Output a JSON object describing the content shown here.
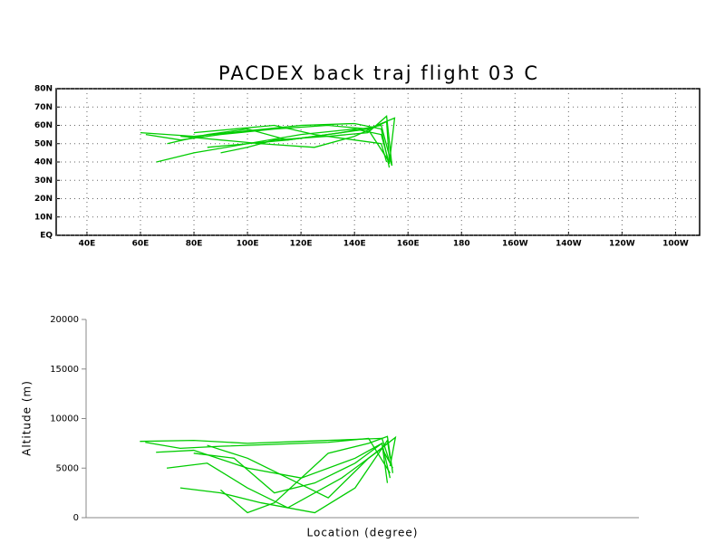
{
  "chart_data": [
    {
      "type": "map",
      "title": "PACDEX back traj flight 03 C",
      "xlim": [
        28.5,
        269
      ],
      "ylim": [
        0,
        80
      ],
      "xticks": [
        {
          "value": 40,
          "label": "40E"
        },
        {
          "value": 60,
          "label": "60E"
        },
        {
          "value": 80,
          "label": "80E"
        },
        {
          "value": 100,
          "label": "100E"
        },
        {
          "value": 120,
          "label": "120E"
        },
        {
          "value": 140,
          "label": "140E"
        },
        {
          "value": 160,
          "label": "160E"
        },
        180,
        {
          "value": 200,
          "label": "160W"
        },
        {
          "value": 220,
          "label": "140W"
        },
        {
          "value": 240,
          "label": "120W"
        },
        {
          "value": 260,
          "label": "100W"
        }
      ],
      "yticks": [
        {
          "value": 0,
          "label": "EQ"
        },
        {
          "value": 10,
          "label": "10N"
        },
        {
          "value": 20,
          "label": "20N"
        },
        {
          "value": 30,
          "label": "30N"
        },
        {
          "value": 40,
          "label": "40N"
        },
        {
          "value": 50,
          "label": "50N"
        },
        {
          "value": 60,
          "label": "60N"
        },
        {
          "value": 70,
          "label": "70N"
        },
        {
          "value": 80,
          "label": "80N"
        }
      ],
      "grid": true,
      "series": [
        {
          "color": "#00cc00",
          "x": [
            62,
            75,
            90,
            110,
            130,
            145,
            153
          ],
          "values": [
            55,
            52,
            55,
            58,
            60,
            58,
            40
          ]
        },
        {
          "color": "#00cc00",
          "x": [
            66,
            80,
            100,
            120,
            140,
            150,
            153
          ],
          "values": [
            40,
            45,
            50,
            55,
            58,
            55,
            39
          ]
        },
        {
          "color": "#00cc00",
          "x": [
            70,
            85,
            100,
            115,
            135,
            150,
            154
          ],
          "values": [
            50,
            55,
            58,
            52,
            56,
            60,
            38
          ]
        },
        {
          "color": "#00cc00",
          "x": [
            75,
            90,
            105,
            125,
            140,
            152,
            153
          ],
          "values": [
            54,
            52,
            50,
            48,
            54,
            62,
            41
          ]
        },
        {
          "color": "#00cc00",
          "x": [
            80,
            95,
            110,
            125,
            140,
            150,
            152
          ],
          "values": [
            56,
            58,
            60,
            55,
            52,
            50,
            40
          ]
        },
        {
          "color": "#00cc00",
          "x": [
            85,
            100,
            115,
            130,
            145,
            155,
            153
          ],
          "values": [
            48,
            50,
            52,
            55,
            58,
            64,
            39
          ]
        },
        {
          "color": "#00cc00",
          "x": [
            60,
            80,
            100,
            120,
            140,
            150,
            153
          ],
          "values": [
            56,
            54,
            57,
            60,
            61,
            58,
            37
          ]
        },
        {
          "color": "#00cc00",
          "x": [
            90,
            100,
            110,
            130,
            145,
            152,
            154
          ],
          "values": [
            45,
            48,
            52,
            54,
            56,
            65,
            38
          ]
        }
      ]
    },
    {
      "type": "line",
      "xlabel": "Location (degree)",
      "ylabel": "Altitude (m)",
      "xlim": [
        40,
        245.5
      ],
      "ylim": [
        0,
        20000
      ],
      "yticks": [
        0,
        5000,
        10000,
        15000,
        20000
      ],
      "series": [
        {
          "color": "#00cc00",
          "x": [
            62,
            75,
            90,
            110,
            130,
            145,
            153
          ],
          "values": [
            7600,
            7000,
            7200,
            7400,
            7600,
            8000,
            4500
          ]
        },
        {
          "color": "#00cc00",
          "x": [
            66,
            80,
            100,
            120,
            140,
            150,
            153
          ],
          "values": [
            6600,
            6800,
            5000,
            4000,
            6000,
            7500,
            4000
          ]
        },
        {
          "color": "#00cc00",
          "x": [
            70,
            85,
            100,
            115,
            135,
            150,
            154
          ],
          "values": [
            5000,
            5500,
            3000,
            1000,
            4000,
            7000,
            5000
          ]
        },
        {
          "color": "#00cc00",
          "x": [
            75,
            90,
            105,
            125,
            140,
            152,
            153
          ],
          "values": [
            3000,
            2500,
            1500,
            500,
            3000,
            7800,
            6000
          ]
        },
        {
          "color": "#00cc00",
          "x": [
            80,
            95,
            110,
            125,
            140,
            150,
            152
          ],
          "values": [
            6500,
            6000,
            2500,
            3500,
            5500,
            7500,
            3500
          ]
        },
        {
          "color": "#00cc00",
          "x": [
            85,
            100,
            115,
            130,
            145,
            155,
            153
          ],
          "values": [
            7300,
            6000,
            4000,
            2000,
            6000,
            8100,
            5200
          ]
        },
        {
          "color": "#00cc00",
          "x": [
            60,
            80,
            100,
            120,
            140,
            150,
            153
          ],
          "values": [
            7700,
            7800,
            7500,
            7700,
            7900,
            8000,
            5500
          ]
        },
        {
          "color": "#00cc00",
          "x": [
            90,
            100,
            110,
            130,
            145,
            152,
            154
          ],
          "values": [
            2800,
            500,
            1500,
            6500,
            7500,
            8200,
            4500
          ]
        }
      ]
    }
  ]
}
